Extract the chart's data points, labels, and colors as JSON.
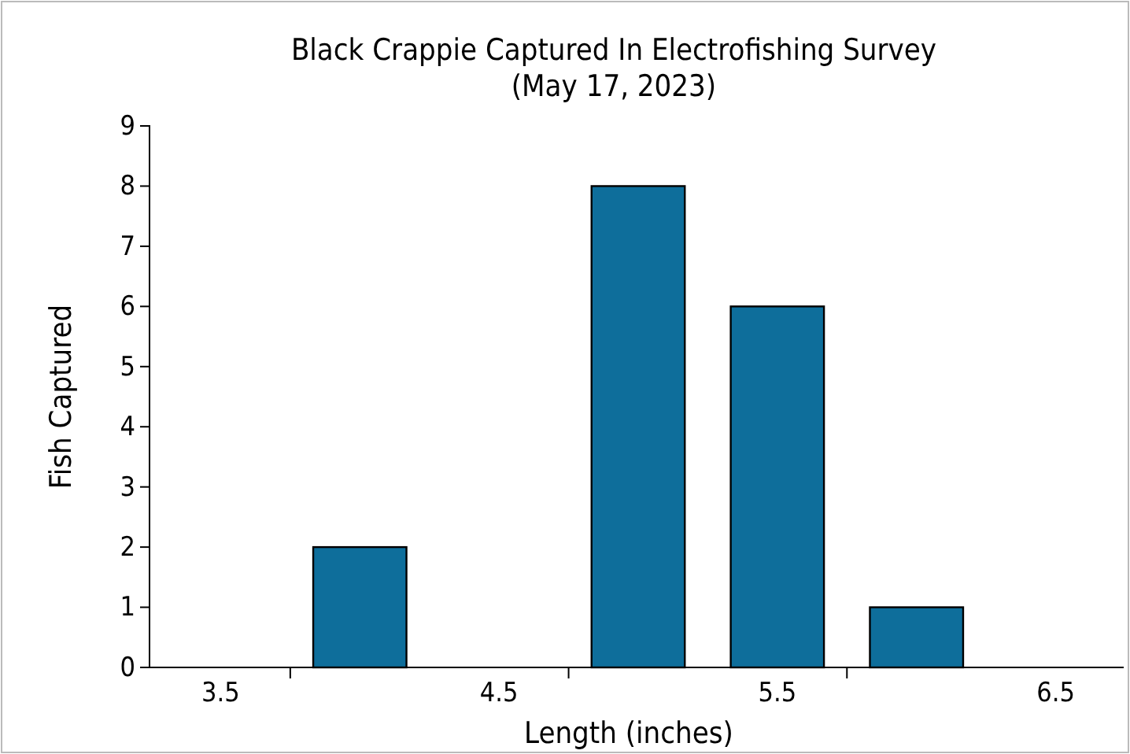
{
  "chart_data": {
    "type": "bar",
    "title": "Black Crappie Captured In Electrofishing Survey",
    "subtitle": "(May 17, 2023)",
    "xlabel": "Length (inches)",
    "ylabel": "Fish Captured",
    "categories": [
      "3.5",
      null,
      "4.5",
      null,
      "5.5",
      null,
      "6.5"
    ],
    "values": [
      0,
      2,
      0,
      8,
      6,
      1,
      0
    ],
    "color": "#0e6e9b",
    "ylim": [
      0,
      9
    ],
    "yticks": [
      0,
      1,
      2,
      3,
      4,
      5,
      6,
      7,
      8,
      9
    ],
    "grid": false
  }
}
